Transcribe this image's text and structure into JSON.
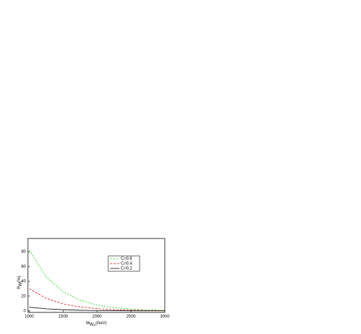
{
  "chart_data": {
    "type": "line",
    "x": [
      1000,
      1250,
      1500,
      1750,
      2000,
      2250,
      2500,
      2750,
      3000
    ],
    "series": [
      {
        "name": "C=0.6",
        "color": "#00cc00",
        "dash": "2,2",
        "values": [
          82,
          46,
          26,
          14.5,
          8,
          4.5,
          2.5,
          1.4,
          0.8
        ]
      },
      {
        "name": "C=0.4",
        "color": "#dd0000",
        "dash": "3,2",
        "values": [
          30,
          17,
          9.5,
          5.3,
          3,
          1.7,
          1,
          0.5,
          0.3
        ]
      },
      {
        "name": "C=0.2",
        "color": "#000000",
        "dash": "none",
        "values": [
          5,
          2.8,
          1.6,
          0.9,
          0.5,
          0.3,
          0.2,
          0.1,
          0.1
        ]
      }
    ],
    "y_label": {
      "main": "R",
      "sub": "W",
      "unit": "(%)"
    },
    "x_label": {
      "main": "M",
      "sub": "W",
      "subsub": "R",
      "unit": "(GeV)"
    },
    "xlim": [
      980,
      3000
    ],
    "xticks": [
      1000,
      1500,
      2000,
      2500,
      3000
    ],
    "ylim": [
      -2,
      98
    ],
    "yticks": [
      0,
      20,
      40,
      60,
      80
    ],
    "legend": "upper-right"
  }
}
